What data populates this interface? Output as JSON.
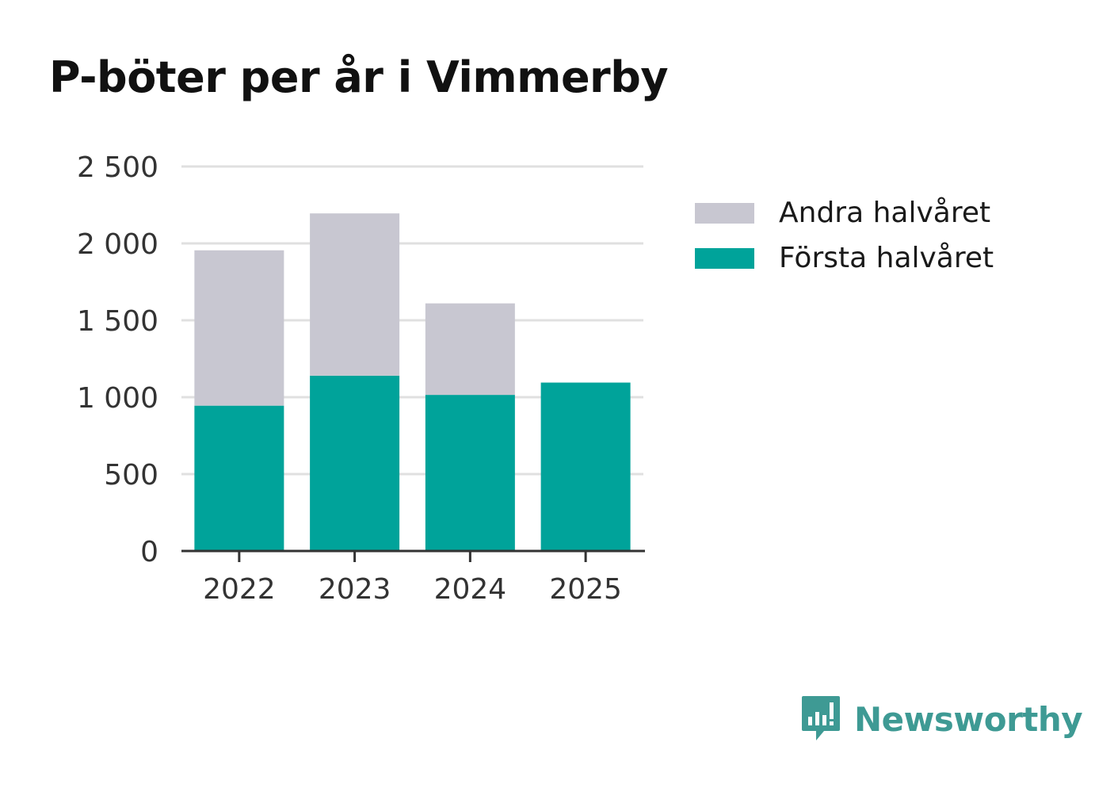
{
  "chart_data": {
    "type": "bar",
    "stacked": true,
    "title": "P-böter per år i Vimmerby",
    "categories": [
      "2022",
      "2023",
      "2024",
      "2025"
    ],
    "series": [
      {
        "name": "Första halvåret",
        "color": "#00a39a",
        "values": [
          945,
          1140,
          1015,
          1095
        ]
      },
      {
        "name": "Andra halvåret",
        "color": "#c8c7d1",
        "values": [
          1010,
          1055,
          595,
          0
        ]
      }
    ],
    "ylim": [
      0,
      2500
    ],
    "yticks": [
      0,
      500,
      1000,
      1500,
      2000,
      2500
    ],
    "ytick_labels": [
      "0",
      "500",
      "1 000",
      "1 500",
      "2 000",
      "2 500"
    ],
    "xlabel": "",
    "ylabel": "",
    "grid": true,
    "legend_position": "right",
    "legend": [
      {
        "label": "Andra halvåret",
        "color": "#c8c7d1"
      },
      {
        "label": "Första halvåret",
        "color": "#00a39a"
      }
    ]
  },
  "brand": {
    "name": "Newsworthy",
    "icon": "newsworthy-logo-icon",
    "color": "#3e9a94"
  }
}
